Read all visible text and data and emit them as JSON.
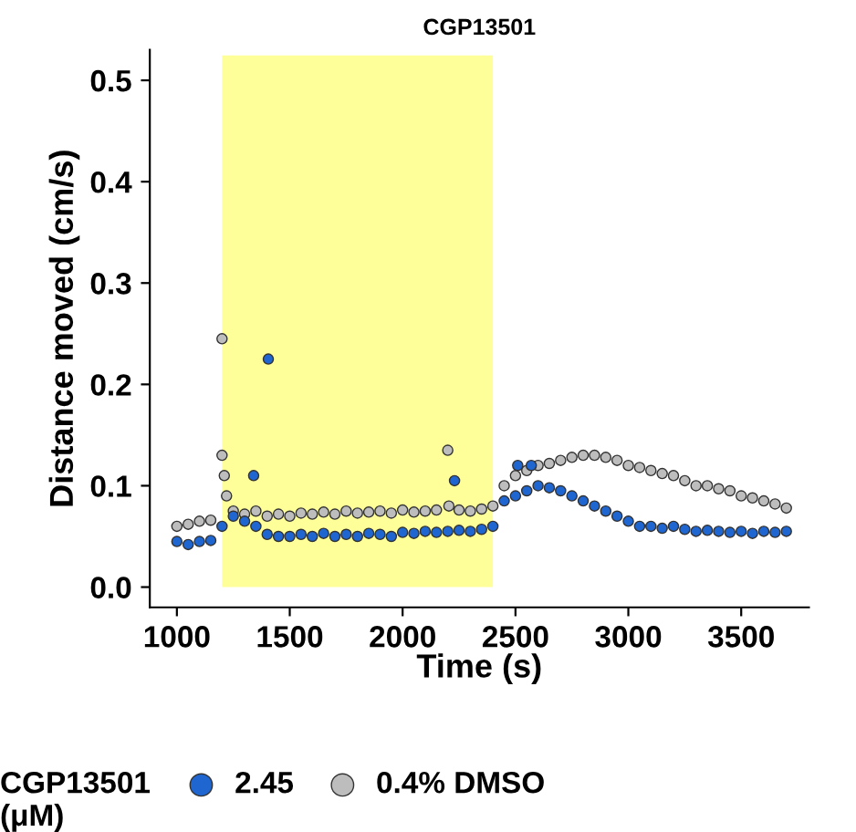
{
  "chart_data": {
    "type": "scatter",
    "title": "CGP13501",
    "xlabel": "Time (s)",
    "ylabel": "Distance moved (cm/s)",
    "legend_title": "CGP13501\n(μM)",
    "legend": "bottom",
    "marker": "circle",
    "grid": false,
    "xlim": [
      880,
      3800
    ],
    "xticks": [
      1000,
      1500,
      2000,
      2500,
      3000,
      3500
    ],
    "ylim": [
      -0.02,
      0.53
    ],
    "yticks": [
      {
        "value": 0,
        "label": "0.0"
      },
      0.1,
      0.2,
      0.3,
      0.4,
      0.5
    ],
    "bands": [
      {
        "axis": "x",
        "from": 1200,
        "to": 2400,
        "color": "#ffff99"
      }
    ],
    "series": [
      {
        "name": "0.4% DMSO",
        "color": "#bdbdbd",
        "x": [
          1000,
          1050,
          1100,
          1150,
          1200,
          1200,
          1210,
          1220,
          1250,
          1300,
          1350,
          1400,
          1450,
          1500,
          1550,
          1600,
          1650,
          1700,
          1750,
          1800,
          1850,
          1900,
          1950,
          2000,
          2050,
          2100,
          2150,
          2200,
          2205,
          2250,
          2300,
          2350,
          2400,
          2450,
          2500,
          2550,
          2600,
          2650,
          2700,
          2750,
          2800,
          2850,
          2900,
          2950,
          3000,
          3050,
          3100,
          3150,
          3200,
          3250,
          3300,
          3350,
          3400,
          3450,
          3500,
          3550,
          3600,
          3650,
          3700
        ],
        "values": [
          0.06,
          0.062,
          0.065,
          0.066,
          0.245,
          0.13,
          0.11,
          0.09,
          0.075,
          0.072,
          0.075,
          0.07,
          0.072,
          0.07,
          0.073,
          0.072,
          0.074,
          0.072,
          0.075,
          0.073,
          0.074,
          0.075,
          0.073,
          0.076,
          0.074,
          0.075,
          0.076,
          0.135,
          0.08,
          0.076,
          0.075,
          0.077,
          0.08,
          0.1,
          0.11,
          0.115,
          0.12,
          0.122,
          0.125,
          0.128,
          0.13,
          0.13,
          0.128,
          0.125,
          0.12,
          0.118,
          0.115,
          0.112,
          0.11,
          0.105,
          0.1,
          0.1,
          0.097,
          0.095,
          0.09,
          0.088,
          0.085,
          0.082,
          0.078
        ]
      },
      {
        "name": "2.45",
        "color": "#1f66d0",
        "x": [
          1000,
          1050,
          1100,
          1150,
          1200,
          1250,
          1300,
          1340,
          1350,
          1400,
          1405,
          1450,
          1500,
          1550,
          1600,
          1650,
          1700,
          1750,
          1800,
          1850,
          1900,
          1950,
          2000,
          2050,
          2100,
          2150,
          2200,
          2230,
          2250,
          2300,
          2350,
          2400,
          2450,
          2500,
          2510,
          2550,
          2570,
          2600,
          2650,
          2700,
          2750,
          2800,
          2850,
          2900,
          2950,
          3000,
          3050,
          3100,
          3150,
          3200,
          3250,
          3300,
          3350,
          3400,
          3450,
          3500,
          3550,
          3600,
          3650,
          3700
        ],
        "values": [
          0.045,
          0.042,
          0.045,
          0.046,
          0.06,
          0.07,
          0.065,
          0.11,
          0.06,
          0.052,
          0.225,
          0.05,
          0.05,
          0.052,
          0.05,
          0.053,
          0.05,
          0.052,
          0.05,
          0.053,
          0.052,
          0.05,
          0.054,
          0.053,
          0.055,
          0.054,
          0.055,
          0.105,
          0.056,
          0.055,
          0.057,
          0.06,
          0.085,
          0.09,
          0.12,
          0.095,
          0.12,
          0.1,
          0.098,
          0.095,
          0.09,
          0.085,
          0.08,
          0.075,
          0.07,
          0.065,
          0.06,
          0.06,
          0.058,
          0.06,
          0.057,
          0.055,
          0.056,
          0.055,
          0.054,
          0.055,
          0.053,
          0.055,
          0.054,
          0.055
        ]
      }
    ]
  }
}
